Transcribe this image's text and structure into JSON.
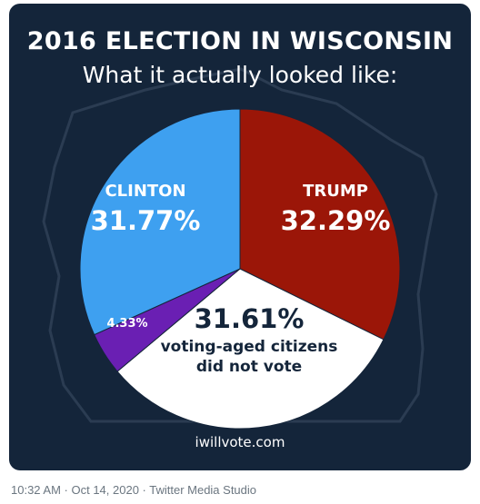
{
  "card": {
    "title": "2016 ELECTION IN WISCONSIN",
    "subtitle": "What it actually looked like:",
    "site": "iwillvote.com"
  },
  "tweet_meta": "10:32 AM · Oct 14, 2020 · Twitter Media Studio",
  "colors": {
    "background": "#14253a",
    "trump": "#9b1608",
    "clinton": "#3ea0f0",
    "other": "#6a1fb3",
    "nonvoters": "#ffffff"
  },
  "chart_data": {
    "type": "pie",
    "title": "2016 ELECTION IN WISCONSIN",
    "subtitle": "What it actually looked like:",
    "slices": [
      {
        "label": "TRUMP",
        "value": 32.29,
        "value_label": "32.29%",
        "color": "#9b1608"
      },
      {
        "label": "voting-aged citizens did not vote",
        "label_lines": [
          "voting-aged citizens",
          "did not vote"
        ],
        "value": 31.61,
        "value_label": "31.61%",
        "color": "#ffffff"
      },
      {
        "label": "",
        "value": 4.33,
        "value_label": "4.33%",
        "color": "#6a1fb3"
      },
      {
        "label": "CLINTON",
        "value": 31.77,
        "value_label": "31.77%",
        "color": "#3ea0f0"
      }
    ]
  }
}
